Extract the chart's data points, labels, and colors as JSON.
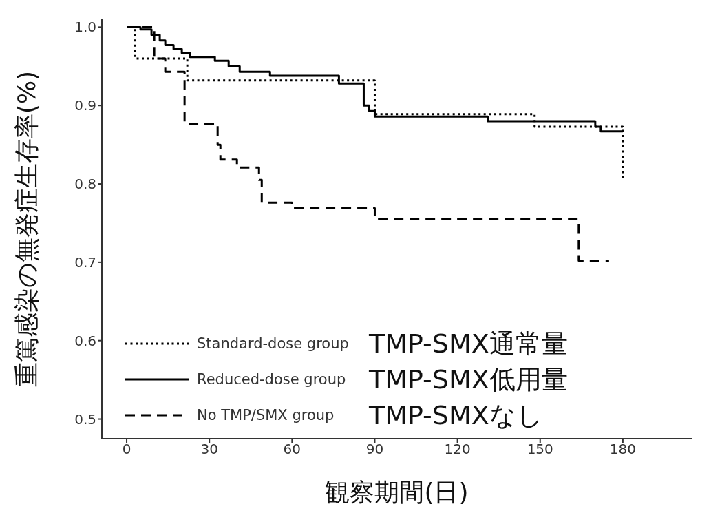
{
  "chart_data": {
    "type": "step",
    "xlabel": "観察期間(日)",
    "ylabel": "重篤感染の無発症生存率(%)",
    "xlim": [
      -9,
      205
    ],
    "xticks": [
      0,
      30,
      60,
      90,
      120,
      150,
      180
    ],
    "ylim": [
      0.475,
      1.01
    ],
    "yticks": [
      {
        "value": 0.5,
        "label": "0.5"
      },
      {
        "value": 0.6,
        "label": "0.6"
      },
      {
        "value": 0.7,
        "label": "0.7"
      },
      {
        "value": 0.8,
        "label": "0.8"
      },
      {
        "value": 0.9,
        "label": "0.9"
      },
      {
        "value": 1.0,
        "label": "1.0"
      }
    ],
    "grid": false,
    "legend": "bottom left",
    "marker": "none",
    "annotations": [
      "TMP-SMX通常量",
      "TMP-SMX低用量",
      "TMP-SMXなし"
    ],
    "series": [
      {
        "name": "Standard-dose group",
        "color": "#000000",
        "line_style": "dotted",
        "x": [
          0,
          3,
          22,
          90,
          148,
          180,
          180
        ],
        "values": [
          1.0,
          0.96,
          0.932,
          0.889,
          0.873,
          0.873,
          0.807
        ]
      },
      {
        "name": "Reduced-dose group",
        "color": "#000000",
        "line_style": "solid",
        "x": [
          0,
          5,
          9,
          12,
          14,
          17,
          20,
          23,
          32,
          37,
          41,
          52,
          77,
          86,
          88,
          90,
          131,
          170,
          172,
          180
        ],
        "values": [
          1.0,
          0.997,
          0.99,
          0.983,
          0.977,
          0.972,
          0.967,
          0.962,
          0.957,
          0.95,
          0.943,
          0.938,
          0.928,
          0.9,
          0.893,
          0.886,
          0.88,
          0.873,
          0.867,
          0.867
        ]
      },
      {
        "name": "No TMP/SMX group",
        "color": "#000000",
        "line_style": "dashed",
        "x": [
          0,
          10,
          14,
          21,
          33,
          34,
          40,
          48,
          49,
          60,
          90,
          164,
          175
        ],
        "values": [
          1.0,
          0.96,
          0.943,
          0.877,
          0.85,
          0.831,
          0.821,
          0.805,
          0.776,
          0.769,
          0.755,
          0.702,
          0.702
        ]
      }
    ]
  }
}
